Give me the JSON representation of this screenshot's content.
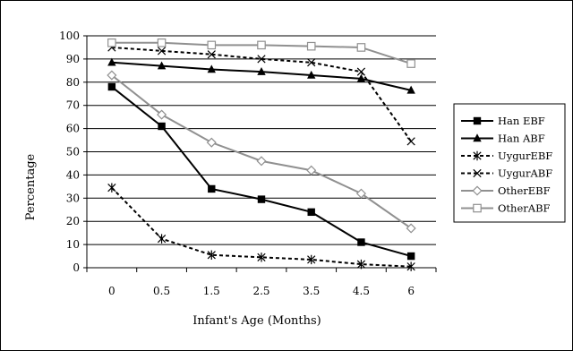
{
  "chart_data": {
    "type": "line",
    "xlabel": "Infant's Age (Months)",
    "ylabel": "Percentage",
    "categories": [
      "0",
      "0.5",
      "1.5",
      "2.5",
      "3.5",
      "4.5",
      "6"
    ],
    "ylim": [
      0,
      100
    ],
    "yticks": [
      0,
      10,
      20,
      30,
      40,
      50,
      60,
      70,
      80,
      90,
      100
    ],
    "grid": true,
    "legend_position": "right",
    "series": [
      {
        "name": "Han EBF",
        "values": [
          78,
          61,
          34,
          29.5,
          24,
          11,
          5
        ],
        "color": "#000000",
        "dash": "solid",
        "marker": "filled-square"
      },
      {
        "name": "Han ABF",
        "values": [
          88.5,
          87,
          85.5,
          84.5,
          83,
          81.5,
          76.5
        ],
        "color": "#000000",
        "dash": "solid",
        "marker": "filled-triangle"
      },
      {
        "name": "UygurEBF",
        "values": [
          34.5,
          12.5,
          5.5,
          4.5,
          3.5,
          1.5,
          0.5
        ],
        "color": "#000000",
        "dash": "dashed",
        "marker": "asterisk"
      },
      {
        "name": "UygurABF",
        "values": [
          95,
          93.5,
          92,
          90,
          88.5,
          84.5,
          54.5
        ],
        "color": "#000000",
        "dash": "dashed",
        "marker": "x"
      },
      {
        "name": "OtherEBF",
        "values": [
          83,
          66,
          54,
          46,
          42,
          32,
          17
        ],
        "color": "#909090",
        "dash": "solid",
        "marker": "open-diamond"
      },
      {
        "name": "OtherABF",
        "values": [
          97,
          97,
          96,
          96,
          95.5,
          95,
          88
        ],
        "color": "#909090",
        "dash": "solid",
        "marker": "open-square"
      }
    ]
  }
}
